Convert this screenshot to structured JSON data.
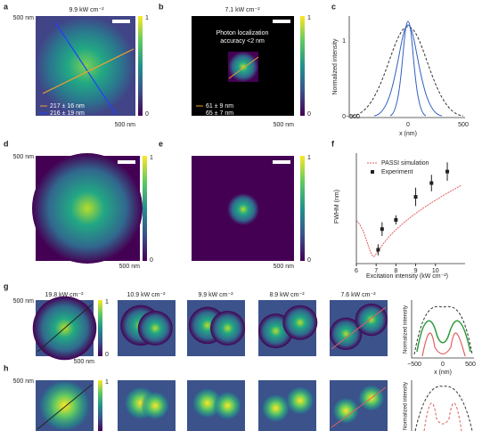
{
  "panel_a": {
    "label": "a",
    "title": "9.9 kW cm⁻²",
    "scale_top": "500 nm",
    "scale_bottom": "500 nm",
    "colorbar_max": "1",
    "colorbar_min": "0",
    "legend": [
      "217 ± 16 nm",
      "216 ± 19 nm"
    ]
  },
  "panel_b": {
    "label": "b",
    "title": "7.1 kW cm⁻²",
    "note": [
      "Photon localization",
      "accuracy <2 nm"
    ],
    "scale_bottom": "500 nm",
    "colorbar_max": "1",
    "colorbar_min": "0",
    "legend": [
      "61 ± 9 nm",
      "65 ± 7 nm"
    ]
  },
  "panel_c": {
    "label": "c",
    "y_label": "Normalized intensity",
    "x_label": "x (nm)",
    "xticks": [
      "−500",
      "0",
      "500"
    ],
    "yticks": [
      "0",
      "1"
    ]
  },
  "panel_d": {
    "label": "d",
    "scale_top": "500 nm",
    "scale_bottom": "500 nm",
    "colorbar_max": "1",
    "colorbar_min": "0"
  },
  "panel_e": {
    "label": "e",
    "scale_bottom": "500 nm",
    "colorbar_max": "1",
    "colorbar_min": "0"
  },
  "panel_f": {
    "label": "f",
    "chart_data": {
      "type": "scatter",
      "x_label": "Excitation intensity (kW cm⁻²)",
      "y_label": "FWHM (nm)",
      "legend": [
        "PASSI simulation",
        "Experiment"
      ],
      "xlim": [
        6,
        11.5
      ],
      "ylim": [
        40,
        280
      ],
      "xticks": [
        6,
        7,
        8,
        9,
        10
      ],
      "x": [
        7.1,
        7.3,
        8.0,
        9.0,
        9.8,
        10.6
      ],
      "values": [
        70,
        115,
        135,
        185,
        215,
        240
      ],
      "errors": [
        12,
        15,
        10,
        20,
        18,
        20
      ]
    }
  },
  "panel_g": {
    "label": "g",
    "scale_top": "500 nm",
    "scale_bottom": "500 nm",
    "colorbar_max": "1",
    "colorbar_min": "0",
    "titles": [
      "19.8 kW cm⁻²",
      "10.9 kW cm⁻²",
      "9.9 kW cm⁻²",
      "8.9 kW cm⁻²",
      "7.6 kW cm⁻²"
    ],
    "y_label": "Normalized intensity",
    "x_label": "x (nm)",
    "xticks": [
      "−500",
      "0",
      "500"
    ]
  },
  "panel_h": {
    "label": "h",
    "scale_top": "500 nm",
    "colorbar_max": "1",
    "y_label": "Normalized intensity"
  }
}
